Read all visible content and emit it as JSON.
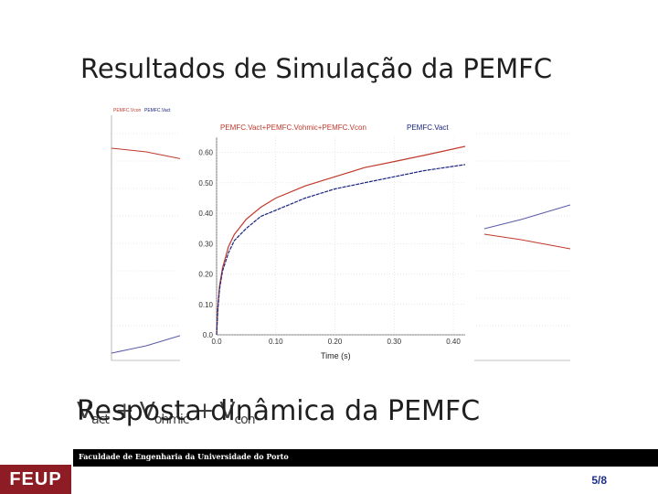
{
  "slide": {
    "title": "Resultados de Simulação da PEMFC",
    "caption_overlay_a": "Resposta dinâmica da PEMFC",
    "caption_overlay_b": {
      "v1": "V",
      "s1": "act",
      "op1": " + V",
      "s2": "ohmic",
      "op2": " + V",
      "s3": "con"
    },
    "footer_text": "Faculdade de Engenharia da Universidade do Porto",
    "logo_text": "FEUP",
    "page_number": "5/8"
  },
  "colors": {
    "red_series": "#c0392b",
    "blue_series": "#1a237e",
    "logo_bg": "#8e1c25"
  },
  "background_plot": {
    "legend": [
      "PEMFC.Vcon",
      "PEMFC.Vact"
    ]
  },
  "chart_data": {
    "type": "line",
    "legend": [
      "PEMFC.Vact+PEMFC.Vohmic+PEMFC.Vcon",
      "PEMFC.Vact"
    ],
    "xlabel": "Time (s)",
    "xticks": [
      "0.0",
      "0.10",
      "0.20",
      "0.30",
      "0.40"
    ],
    "yticks": [
      "0.0",
      "0.10",
      "0.20",
      "0.30",
      "0.40",
      "0.50",
      "0.60"
    ],
    "xlim": [
      0,
      0.42
    ],
    "ylim": [
      0,
      0.65
    ],
    "series": [
      {
        "name": "PEMFC.Vact+PEMFC.Vohmic+PEMFC.Vcon",
        "color": "#c0392b",
        "x": [
          0,
          0.002,
          0.005,
          0.01,
          0.02,
          0.03,
          0.05,
          0.075,
          0.1,
          0.15,
          0.2,
          0.25,
          0.3,
          0.35,
          0.42
        ],
        "y": [
          0,
          0.09,
          0.16,
          0.22,
          0.29,
          0.33,
          0.38,
          0.42,
          0.45,
          0.49,
          0.52,
          0.55,
          0.57,
          0.59,
          0.62
        ]
      },
      {
        "name": "PEMFC.Vact",
        "color": "#1a237e",
        "x": [
          0,
          0.002,
          0.005,
          0.01,
          0.02,
          0.03,
          0.05,
          0.075,
          0.1,
          0.15,
          0.2,
          0.25,
          0.3,
          0.35,
          0.42
        ],
        "y": [
          0,
          0.08,
          0.15,
          0.21,
          0.27,
          0.31,
          0.35,
          0.39,
          0.41,
          0.45,
          0.48,
          0.5,
          0.52,
          0.54,
          0.56
        ]
      }
    ]
  }
}
